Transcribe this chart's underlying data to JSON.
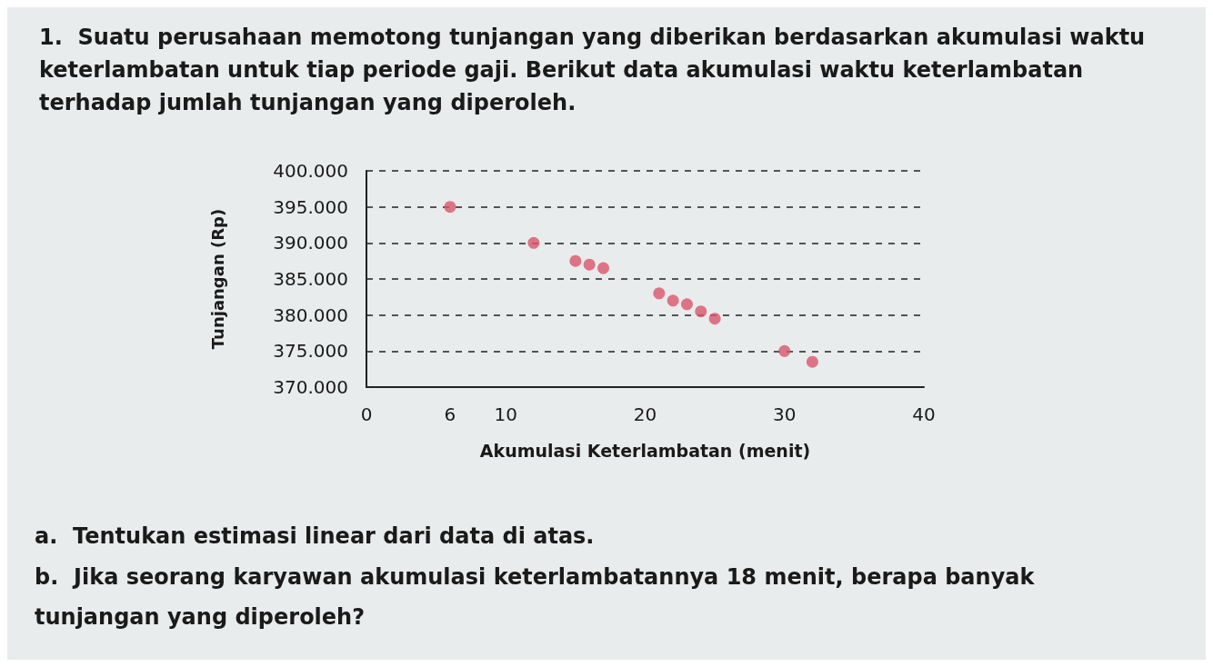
{
  "chart_data": {
    "type": "scatter",
    "title": "1.  Suatu perusahaan memotong tunjangan yang diberikan berdasarkan akumulasi waktu keterlambatan untuk tiap periode gaji. Berikut data akumulasi waktu keterlambatan terhadap jumlah tunjangan yang diperoleh.",
    "xlabel": "Akumulasi Keterlambatan (menit)",
    "ylabel": "Tunjangan (Rp)",
    "x": [
      6,
      12,
      15,
      16,
      17,
      21,
      22,
      23,
      24,
      25,
      30,
      32
    ],
    "values": [
      395000,
      390000,
      387500,
      387000,
      386500,
      383000,
      382000,
      381500,
      380500,
      379500,
      375000,
      373500
    ],
    "color": "#d9566b",
    "marker": "circle",
    "grid": "y",
    "xlim": [
      0,
      40
    ],
    "xticks": [
      0,
      6,
      10,
      20,
      30,
      40
    ],
    "ylim": [
      370000,
      400000
    ],
    "yticks": [
      {
        "value": 370000,
        "label": "370.000"
      },
      {
        "value": 375000,
        "label": "375.000"
      },
      {
        "value": 380000,
        "label": "380.000"
      },
      {
        "value": 385000,
        "label": "385.000"
      },
      {
        "value": 390000,
        "label": "390.000"
      },
      {
        "value": 395000,
        "label": "395.000"
      },
      {
        "value": 400000,
        "label": "400.000"
      }
    ],
    "annotations": [
      "a.  Tentukan estimasi linear dari data di atas.",
      "b.  Jika seorang karyawan akumulasi keterlambatannya 18 menit, berapa banyak tunjangan yang diperoleh?"
    ]
  }
}
